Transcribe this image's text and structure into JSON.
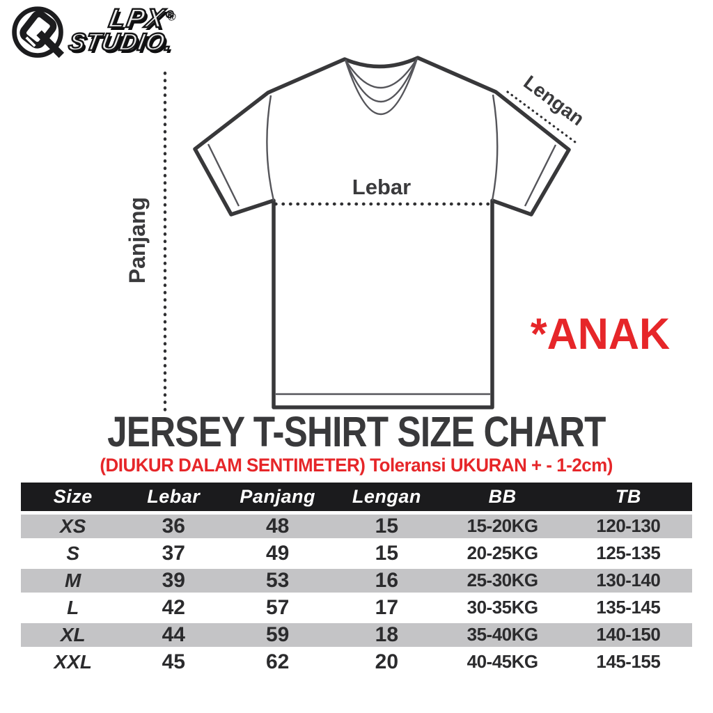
{
  "page": {
    "background": "#ffffff"
  },
  "brand": {
    "icon": "lpx-monogram-circle-q",
    "wordmark_line1": "LPX",
    "wordmark_reg": "®",
    "wordmark_line2": "STUDIO."
  },
  "diagram": {
    "label_width": "Lebar",
    "label_length": "Panjang",
    "label_sleeve": "Lengan",
    "note": "*ANAK"
  },
  "heading": {
    "title": "JERSEY T-SHIRT SIZE CHART",
    "subtitle": "(DIUKUR DALAM SENTIMETER) Toleransi UKURAN + - 1-2cm)"
  },
  "chart_data": {
    "type": "table",
    "title": "JERSEY T-SHIRT SIZE CHART",
    "units": "cm",
    "tolerance_note": "Toleransi UKURAN + - 1-2cm",
    "audience_note": "*ANAK",
    "columns": [
      "Size",
      "Lebar",
      "Panjang",
      "Lengan",
      "BB",
      "TB"
    ],
    "rows": [
      [
        "XS",
        "36",
        "48",
        "15",
        "15-20KG",
        "120-130"
      ],
      [
        "S",
        "37",
        "49",
        "15",
        "20-25KG",
        "125-135"
      ],
      [
        "M",
        "39",
        "53",
        "16",
        "25-30KG",
        "130-140"
      ],
      [
        "L",
        "42",
        "57",
        "17",
        "30-35KG",
        "135-145"
      ],
      [
        "XL",
        "44",
        "59",
        "18",
        "35-40KG",
        "140-150"
      ],
      [
        "XXL",
        "45",
        "62",
        "20",
        "40-45KG",
        "145-155"
      ]
    ]
  },
  "colors": {
    "accent_red": "#e62629",
    "ink": "#39393b",
    "outline": "#38383a",
    "header_bg": "#1b1b1d",
    "row_gray": "#c4c4c6",
    "row_white": "#ffffff"
  }
}
